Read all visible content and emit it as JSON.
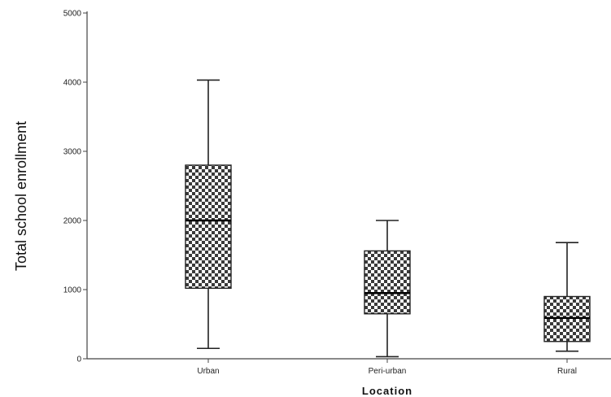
{
  "chart_data": {
    "type": "boxplot",
    "title": "",
    "xlabel": "Location",
    "ylabel": "Total school enrollment",
    "ylim": [
      0,
      5000
    ],
    "yticks": [
      0,
      1000,
      2000,
      3000,
      4000,
      5000
    ],
    "yticks_labels": [
      "0",
      "1000",
      "2000",
      "3000",
      "4000",
      "5000"
    ],
    "grid": false,
    "legend": "none",
    "box_fill_pattern": "checkerboard",
    "colors": {
      "box_fill_dark": "#3a3a3a",
      "box_fill_light": "#ffffff",
      "axis": "#444444",
      "median": "#000000"
    },
    "categories": [
      "Urban",
      "Peri-urban",
      "Rural"
    ],
    "boxes": [
      {
        "category": "Urban",
        "min": 150,
        "q1": 1020,
        "median": 2000,
        "q3": 2800,
        "max": 4030
      },
      {
        "category": "Peri-urban",
        "min": 30,
        "q1": 650,
        "median": 950,
        "q3": 1560,
        "max": 2000
      },
      {
        "category": "Rural",
        "min": 110,
        "q1": 250,
        "median": 590,
        "q3": 900,
        "max": 1680
      }
    ]
  }
}
